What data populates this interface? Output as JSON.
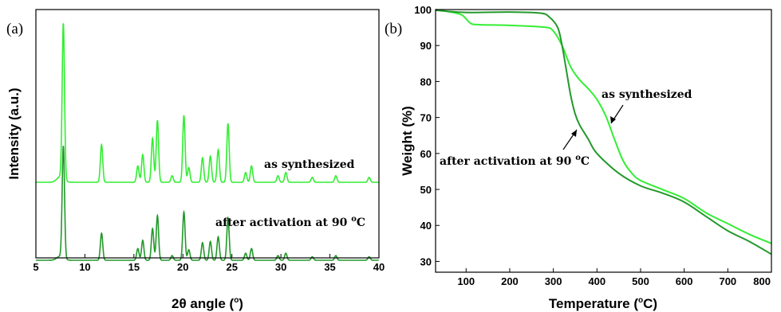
{
  "colors": {
    "light": "#33ee33",
    "dark": "#22992a"
  },
  "chart_data": [
    {
      "type": "line",
      "panel_label": "(a)",
      "xlabel": "2θ angle (°)",
      "xlabel_parts": {
        "main": "2θ angle (",
        "sup": "o",
        "end": ")"
      },
      "ylabel": "Intensity (a.u.)",
      "xlim": [
        5,
        40
      ],
      "xticks": [
        "5",
        "10",
        "15",
        "20",
        "25",
        "30",
        "35",
        "40"
      ],
      "yticks": [],
      "grid": false,
      "peaks": [
        {
          "x": 7.8,
          "h": 0.95,
          "w": 0.12
        },
        {
          "x": 11.7,
          "h": 0.23,
          "w": 0.12
        },
        {
          "x": 15.4,
          "h": 0.1,
          "w": 0.12
        },
        {
          "x": 15.9,
          "h": 0.17,
          "w": 0.12
        },
        {
          "x": 16.9,
          "h": 0.27,
          "w": 0.12
        },
        {
          "x": 17.4,
          "h": 0.38,
          "w": 0.12
        },
        {
          "x": 18.9,
          "h": 0.04,
          "w": 0.12
        },
        {
          "x": 20.1,
          "h": 0.41,
          "w": 0.12
        },
        {
          "x": 20.6,
          "h": 0.09,
          "w": 0.12
        },
        {
          "x": 22.0,
          "h": 0.15,
          "w": 0.12
        },
        {
          "x": 22.8,
          "h": 0.16,
          "w": 0.12
        },
        {
          "x": 23.6,
          "h": 0.2,
          "w": 0.12
        },
        {
          "x": 24.6,
          "h": 0.36,
          "w": 0.12
        },
        {
          "x": 26.4,
          "h": 0.06,
          "w": 0.12
        },
        {
          "x": 27.0,
          "h": 0.1,
          "w": 0.12
        },
        {
          "x": 29.7,
          "h": 0.04,
          "w": 0.12
        },
        {
          "x": 30.5,
          "h": 0.06,
          "w": 0.12
        },
        {
          "x": 33.2,
          "h": 0.03,
          "w": 0.12
        },
        {
          "x": 35.6,
          "h": 0.04,
          "w": 0.12
        },
        {
          "x": 39.0,
          "h": 0.03,
          "w": 0.12
        }
      ],
      "series": [
        {
          "name": "as synthesized",
          "color": "#33ee33",
          "offset": 1.0,
          "scale": 1.0
        },
        {
          "name": "after activation at 90 °C",
          "color": "#22992a",
          "offset": 0.0,
          "scale": 0.72
        }
      ],
      "annotations": [
        {
          "text": "as synthesized"
        },
        {
          "text": "after activation at 90 ",
          "sup": "o",
          "end": "C"
        }
      ]
    },
    {
      "type": "line",
      "panel_label": "(b)",
      "xlabel": "Temperature (°C)",
      "xlabel_parts": {
        "main": "Temperature (",
        "sup": "o",
        "end": "C)"
      },
      "ylabel": "Weight (%)",
      "xlim": [
        30,
        800
      ],
      "ylim": [
        27,
        100
      ],
      "xticks": [
        "100",
        "200",
        "300",
        "400",
        "500",
        "600",
        "700",
        "800"
      ],
      "yticks": [
        "30",
        "40",
        "50",
        "60",
        "70",
        "80",
        "90",
        "100"
      ],
      "grid": false,
      "series": [
        {
          "name": "as synthesized",
          "color": "#33ee33",
          "x": [
            30,
            60,
            90,
            110,
            130,
            200,
            280,
            300,
            320,
            340,
            360,
            380,
            400,
            420,
            440,
            460,
            480,
            500,
            550,
            600,
            650,
            700,
            750,
            800
          ],
          "y": [
            100,
            99.4,
            98.5,
            96.2,
            95.8,
            95.6,
            95.1,
            94,
            90,
            84,
            80.5,
            78,
            75,
            70.5,
            64,
            58,
            54.5,
            52.5,
            50,
            47.5,
            43.5,
            40.5,
            37.5,
            35
          ]
        },
        {
          "name": "after activation at 90 °C",
          "color": "#22992a",
          "x": [
            30,
            100,
            200,
            270,
            290,
            310,
            320,
            330,
            340,
            350,
            360,
            380,
            400,
            450,
            500,
            550,
            600,
            650,
            700,
            750,
            800
          ],
          "y": [
            99.8,
            99.2,
            99.3,
            99,
            98,
            95,
            90,
            83,
            76,
            71,
            68,
            64,
            60,
            54.5,
            51,
            49,
            46.5,
            42.5,
            38.5,
            35.5,
            32
          ]
        }
      ],
      "annotations": [
        {
          "text": "as synthesized"
        },
        {
          "text": "after activation at 90 ",
          "sup": "o",
          "end": "C"
        }
      ]
    }
  ]
}
